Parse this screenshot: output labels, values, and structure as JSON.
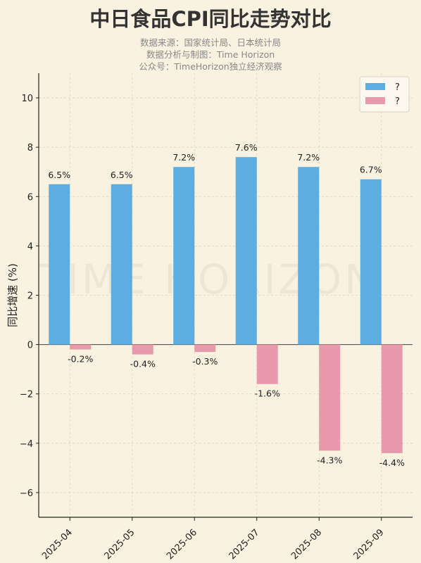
{
  "title": "中日食品CPI同比走势对比",
  "subtitle_lines": [
    "数据来源：国家统计局、日本统计局",
    "数据分析与制图：Time Horizon",
    "公众号：TimeHorizon独立经济观察"
  ],
  "watermark": "TIME HORIZON",
  "chart_data": {
    "type": "bar",
    "title": "中日食品CPI同比走势对比",
    "ylabel": "同比增速 (%)",
    "xlabel": "",
    "categories": [
      "2025-04",
      "2025-05",
      "2025-06",
      "2025-07",
      "2025-08",
      "2025-09"
    ],
    "series": [
      {
        "name": "?",
        "values": [
          6.5,
          6.5,
          7.2,
          7.6,
          7.2,
          6.7
        ],
        "color": "#5dade2",
        "labels": [
          "6.5%",
          "6.5%",
          "7.2%",
          "7.6%",
          "7.2%",
          "6.7%"
        ]
      },
      {
        "name": "?",
        "values": [
          -0.2,
          -0.4,
          -0.3,
          -1.6,
          -4.3,
          -4.4
        ],
        "color": "#e89aac",
        "labels": [
          "-0.2%",
          "-0.4%",
          "-0.3%",
          "-1.6%",
          "-4.3%",
          "-4.4%"
        ]
      }
    ],
    "ylim": [
      -7,
      11
    ],
    "yticks": [
      -6,
      -4,
      -2,
      0,
      2,
      4,
      6,
      8,
      10
    ],
    "ytick_labels": [
      "−6",
      "−4",
      "−2",
      "0",
      "2",
      "4",
      "6",
      "8",
      "10"
    ],
    "grid": true,
    "legend_position": "top-right"
  }
}
